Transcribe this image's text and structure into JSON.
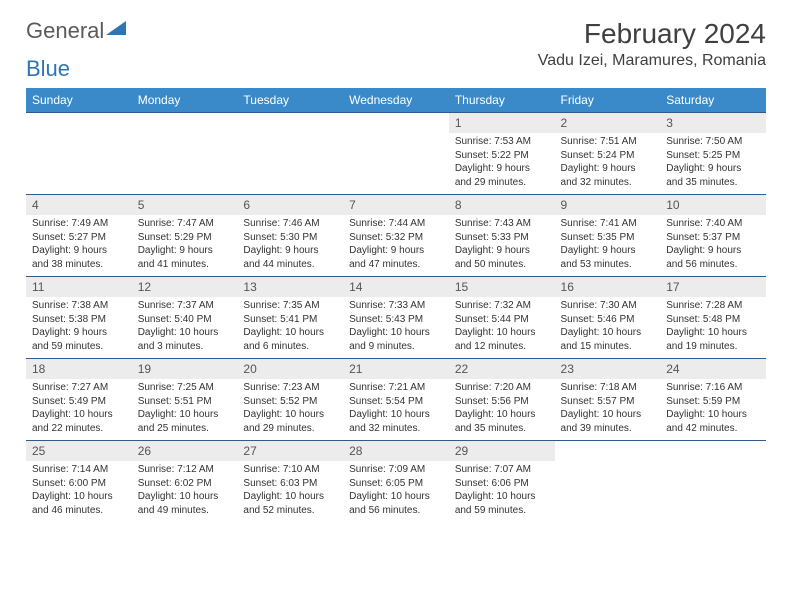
{
  "logo": {
    "text1": "General",
    "text2": "Blue"
  },
  "title": "February 2024",
  "location": "Vadu Izei, Maramures, Romania",
  "dayHeaders": [
    "Sunday",
    "Monday",
    "Tuesday",
    "Wednesday",
    "Thursday",
    "Friday",
    "Saturday"
  ],
  "colors": {
    "header_bg": "#3a8ac9",
    "header_text": "#ffffff",
    "daynum_bg": "#ececec",
    "border": "#2e5b8a",
    "logo_gray": "#5a5a5a",
    "logo_blue": "#2e75b6"
  },
  "weeks": [
    [
      null,
      null,
      null,
      null,
      {
        "n": "1",
        "sr": "Sunrise: 7:53 AM",
        "ss": "Sunset: 5:22 PM",
        "d1": "Daylight: 9 hours",
        "d2": "and 29 minutes."
      },
      {
        "n": "2",
        "sr": "Sunrise: 7:51 AM",
        "ss": "Sunset: 5:24 PM",
        "d1": "Daylight: 9 hours",
        "d2": "and 32 minutes."
      },
      {
        "n": "3",
        "sr": "Sunrise: 7:50 AM",
        "ss": "Sunset: 5:25 PM",
        "d1": "Daylight: 9 hours",
        "d2": "and 35 minutes."
      }
    ],
    [
      {
        "n": "4",
        "sr": "Sunrise: 7:49 AM",
        "ss": "Sunset: 5:27 PM",
        "d1": "Daylight: 9 hours",
        "d2": "and 38 minutes."
      },
      {
        "n": "5",
        "sr": "Sunrise: 7:47 AM",
        "ss": "Sunset: 5:29 PM",
        "d1": "Daylight: 9 hours",
        "d2": "and 41 minutes."
      },
      {
        "n": "6",
        "sr": "Sunrise: 7:46 AM",
        "ss": "Sunset: 5:30 PM",
        "d1": "Daylight: 9 hours",
        "d2": "and 44 minutes."
      },
      {
        "n": "7",
        "sr": "Sunrise: 7:44 AM",
        "ss": "Sunset: 5:32 PM",
        "d1": "Daylight: 9 hours",
        "d2": "and 47 minutes."
      },
      {
        "n": "8",
        "sr": "Sunrise: 7:43 AM",
        "ss": "Sunset: 5:33 PM",
        "d1": "Daylight: 9 hours",
        "d2": "and 50 minutes."
      },
      {
        "n": "9",
        "sr": "Sunrise: 7:41 AM",
        "ss": "Sunset: 5:35 PM",
        "d1": "Daylight: 9 hours",
        "d2": "and 53 minutes."
      },
      {
        "n": "10",
        "sr": "Sunrise: 7:40 AM",
        "ss": "Sunset: 5:37 PM",
        "d1": "Daylight: 9 hours",
        "d2": "and 56 minutes."
      }
    ],
    [
      {
        "n": "11",
        "sr": "Sunrise: 7:38 AM",
        "ss": "Sunset: 5:38 PM",
        "d1": "Daylight: 9 hours",
        "d2": "and 59 minutes."
      },
      {
        "n": "12",
        "sr": "Sunrise: 7:37 AM",
        "ss": "Sunset: 5:40 PM",
        "d1": "Daylight: 10 hours",
        "d2": "and 3 minutes."
      },
      {
        "n": "13",
        "sr": "Sunrise: 7:35 AM",
        "ss": "Sunset: 5:41 PM",
        "d1": "Daylight: 10 hours",
        "d2": "and 6 minutes."
      },
      {
        "n": "14",
        "sr": "Sunrise: 7:33 AM",
        "ss": "Sunset: 5:43 PM",
        "d1": "Daylight: 10 hours",
        "d2": "and 9 minutes."
      },
      {
        "n": "15",
        "sr": "Sunrise: 7:32 AM",
        "ss": "Sunset: 5:44 PM",
        "d1": "Daylight: 10 hours",
        "d2": "and 12 minutes."
      },
      {
        "n": "16",
        "sr": "Sunrise: 7:30 AM",
        "ss": "Sunset: 5:46 PM",
        "d1": "Daylight: 10 hours",
        "d2": "and 15 minutes."
      },
      {
        "n": "17",
        "sr": "Sunrise: 7:28 AM",
        "ss": "Sunset: 5:48 PM",
        "d1": "Daylight: 10 hours",
        "d2": "and 19 minutes."
      }
    ],
    [
      {
        "n": "18",
        "sr": "Sunrise: 7:27 AM",
        "ss": "Sunset: 5:49 PM",
        "d1": "Daylight: 10 hours",
        "d2": "and 22 minutes."
      },
      {
        "n": "19",
        "sr": "Sunrise: 7:25 AM",
        "ss": "Sunset: 5:51 PM",
        "d1": "Daylight: 10 hours",
        "d2": "and 25 minutes."
      },
      {
        "n": "20",
        "sr": "Sunrise: 7:23 AM",
        "ss": "Sunset: 5:52 PM",
        "d1": "Daylight: 10 hours",
        "d2": "and 29 minutes."
      },
      {
        "n": "21",
        "sr": "Sunrise: 7:21 AM",
        "ss": "Sunset: 5:54 PM",
        "d1": "Daylight: 10 hours",
        "d2": "and 32 minutes."
      },
      {
        "n": "22",
        "sr": "Sunrise: 7:20 AM",
        "ss": "Sunset: 5:56 PM",
        "d1": "Daylight: 10 hours",
        "d2": "and 35 minutes."
      },
      {
        "n": "23",
        "sr": "Sunrise: 7:18 AM",
        "ss": "Sunset: 5:57 PM",
        "d1": "Daylight: 10 hours",
        "d2": "and 39 minutes."
      },
      {
        "n": "24",
        "sr": "Sunrise: 7:16 AM",
        "ss": "Sunset: 5:59 PM",
        "d1": "Daylight: 10 hours",
        "d2": "and 42 minutes."
      }
    ],
    [
      {
        "n": "25",
        "sr": "Sunrise: 7:14 AM",
        "ss": "Sunset: 6:00 PM",
        "d1": "Daylight: 10 hours",
        "d2": "and 46 minutes."
      },
      {
        "n": "26",
        "sr": "Sunrise: 7:12 AM",
        "ss": "Sunset: 6:02 PM",
        "d1": "Daylight: 10 hours",
        "d2": "and 49 minutes."
      },
      {
        "n": "27",
        "sr": "Sunrise: 7:10 AM",
        "ss": "Sunset: 6:03 PM",
        "d1": "Daylight: 10 hours",
        "d2": "and 52 minutes."
      },
      {
        "n": "28",
        "sr": "Sunrise: 7:09 AM",
        "ss": "Sunset: 6:05 PM",
        "d1": "Daylight: 10 hours",
        "d2": "and 56 minutes."
      },
      {
        "n": "29",
        "sr": "Sunrise: 7:07 AM",
        "ss": "Sunset: 6:06 PM",
        "d1": "Daylight: 10 hours",
        "d2": "and 59 minutes."
      },
      null,
      null
    ]
  ]
}
